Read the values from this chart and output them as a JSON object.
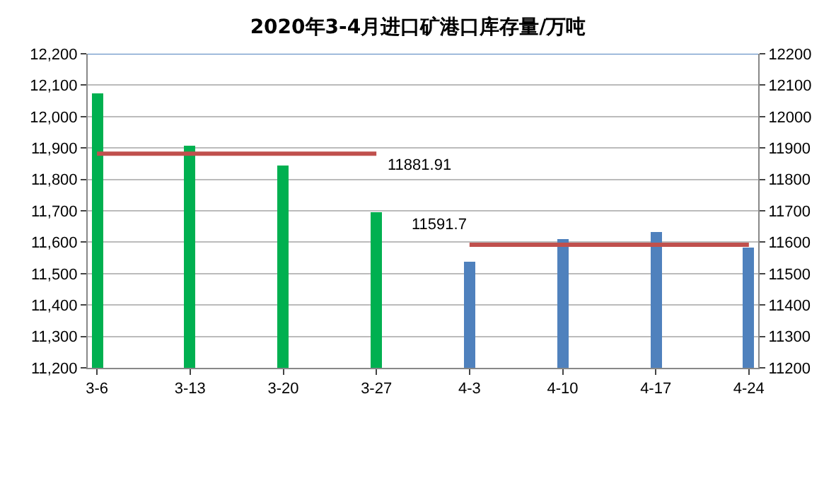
{
  "chart_data": {
    "type": "bar",
    "title": "2020年3-4月进口矿港口库存量/万吨",
    "categories": [
      "3-6",
      "3-13",
      "3-20",
      "3-27",
      "4-3",
      "4-10",
      "4-17",
      "4-24"
    ],
    "series": [
      {
        "values": [
          12076,
          11909,
          11843,
          11695,
          11536,
          11611,
          11634,
          11585
        ],
        "colors": [
          "#00b050",
          "#00b050",
          "#00b050",
          "#00b050",
          "#4f81bd",
          "#4f81bd",
          "#4f81bd",
          "#4f81bd"
        ]
      },
      {
        "type": "line",
        "color": "#c0504d",
        "values": [
          11881.91,
          11881.91,
          11881.91,
          11881.91,
          null,
          null,
          null,
          null
        ]
      },
      {
        "type": "line",
        "color": "#c0504d",
        "values": [
          null,
          null,
          null,
          null,
          11591.7,
          11591.7,
          11591.7,
          11591.7
        ]
      }
    ],
    "annotations": [
      {
        "text": "11881.91",
        "x": "3-27",
        "y": 11881.91
      },
      {
        "text": "11591.7",
        "x": "4-3",
        "y": 11591.7
      }
    ],
    "ylim": [
      11200,
      12200
    ],
    "yticks": [
      {
        "value": 11200,
        "label": "11,200"
      },
      {
        "value": 11300,
        "label": "11,300"
      },
      {
        "value": 11400,
        "label": "11,400"
      },
      {
        "value": 11500,
        "label": "11,500"
      },
      {
        "value": 11600,
        "label": "11,600"
      },
      {
        "value": 11700,
        "label": "11,700"
      },
      {
        "value": 11800,
        "label": "11,800"
      },
      {
        "value": 11900,
        "label": "11,900"
      },
      {
        "value": 12000,
        "label": "12,000"
      },
      {
        "value": 12100,
        "label": "12,100"
      },
      {
        "value": 12200,
        "label": "12,200"
      }
    ],
    "y2lim": [
      11200,
      12200
    ],
    "y2ticks": [
      11200,
      11300,
      11400,
      11500,
      11600,
      11700,
      11800,
      11900,
      12000,
      12100,
      12200
    ],
    "grid": "y",
    "marker": "none",
    "line_style": "solid"
  }
}
